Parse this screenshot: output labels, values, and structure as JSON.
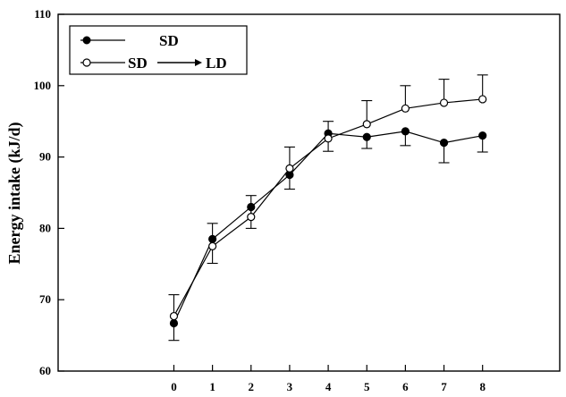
{
  "chart_data": {
    "type": "line",
    "title": "",
    "xlabel": "",
    "ylabel": "Energy intake (kJ/d)",
    "x": [
      0,
      1,
      2,
      3,
      4,
      5,
      6,
      7,
      8
    ],
    "xlim": [
      -3,
      10
    ],
    "ylim": [
      60,
      110
    ],
    "x_ticks": [
      "0",
      "1",
      "2",
      "3",
      "4",
      "5",
      "6",
      "7",
      "8"
    ],
    "y_ticks": [
      "60",
      "70",
      "80",
      "90",
      "100",
      "110"
    ],
    "legend_position": "top-left",
    "series": [
      {
        "name": "SD",
        "marker": "filled-circle",
        "color": "#000000",
        "values": [
          66.7,
          78.5,
          83.0,
          87.5,
          93.3,
          92.8,
          93.6,
          92.0,
          93.0
        ],
        "errors": [
          2.4,
          3.4,
          3.0,
          2.0,
          2.5,
          1.6,
          2.0,
          2.8,
          2.3
        ]
      },
      {
        "name": "SD → LD",
        "legend_left": "SD",
        "legend_right": "LD",
        "marker": "open-circle",
        "color": "#000000",
        "values": [
          67.7,
          77.5,
          81.6,
          88.4,
          92.6,
          94.6,
          96.8,
          97.6,
          98.1
        ],
        "errors": [
          3.0,
          3.2,
          3.0,
          3.0,
          2.4,
          3.3,
          3.2,
          3.3,
          3.4
        ]
      }
    ]
  }
}
